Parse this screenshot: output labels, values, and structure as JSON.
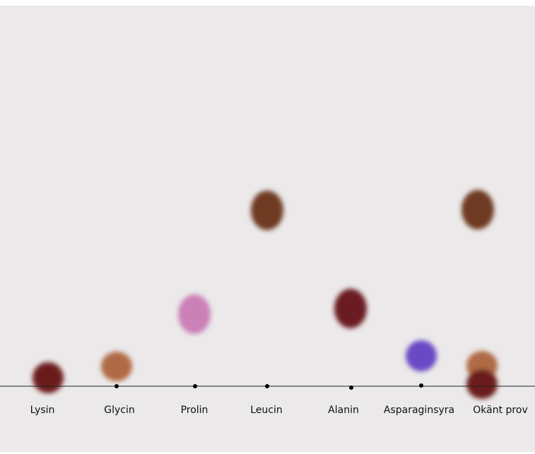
{
  "lanes": [
    {
      "label": "Lysin"
    },
    {
      "label": "Glycin"
    },
    {
      "label": "Prolin"
    },
    {
      "label": "Leucin"
    },
    {
      "label": "Alanin"
    },
    {
      "label": "Asparaginsyra"
    },
    {
      "label": "Okänt prov"
    }
  ]
}
